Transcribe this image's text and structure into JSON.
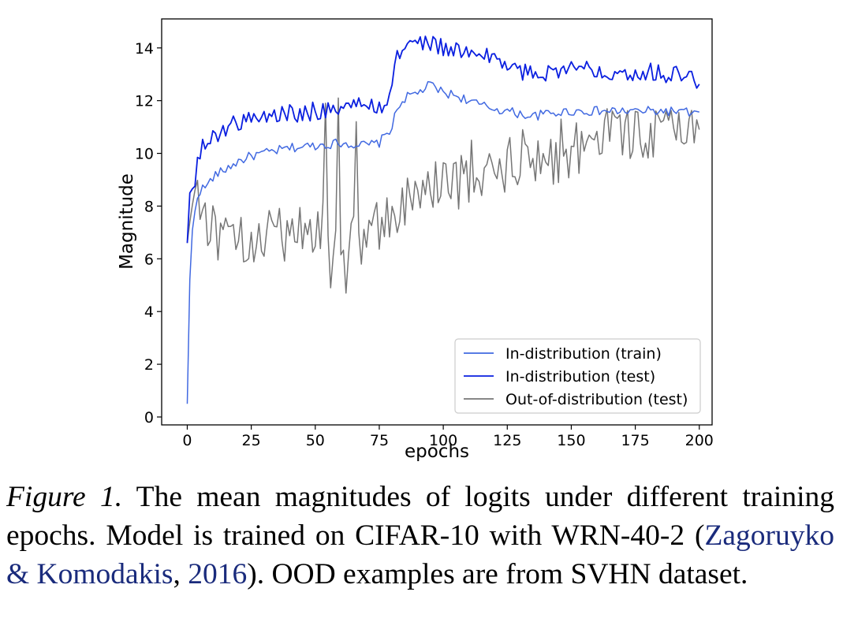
{
  "chart_data": {
    "type": "line",
    "title": "",
    "xlabel": "epochs",
    "ylabel": "Magnitude",
    "xlim": [
      -10,
      205
    ],
    "ylim": [
      -0.3,
      15.1
    ],
    "xticks": [
      0,
      25,
      50,
      75,
      100,
      125,
      150,
      175,
      200
    ],
    "yticks": [
      0,
      2,
      4,
      6,
      8,
      10,
      12,
      14
    ],
    "grid": false,
    "legend_position": "lower-right",
    "series": [
      {
        "name": "In-distribution (train)",
        "color": "#4169e1",
        "knots": [
          [
            0,
            0.5
          ],
          [
            1,
            5.2
          ],
          [
            2,
            7.0
          ],
          [
            3,
            7.8
          ],
          [
            4,
            8.4
          ],
          [
            5,
            8.6
          ],
          [
            8,
            8.8
          ],
          [
            10,
            9.1
          ],
          [
            15,
            9.4
          ],
          [
            20,
            9.7
          ],
          [
            25,
            9.9
          ],
          [
            30,
            10.0
          ],
          [
            40,
            10.2
          ],
          [
            50,
            10.3
          ],
          [
            60,
            10.4
          ],
          [
            70,
            10.3
          ],
          [
            75,
            10.4
          ],
          [
            80,
            11.0
          ],
          [
            82,
            11.7
          ],
          [
            85,
            12.1
          ],
          [
            90,
            12.3
          ],
          [
            95,
            12.6
          ],
          [
            100,
            12.3
          ],
          [
            105,
            12.2
          ],
          [
            110,
            12.0
          ],
          [
            115,
            11.8
          ],
          [
            120,
            11.7
          ],
          [
            125,
            11.6
          ],
          [
            130,
            11.5
          ],
          [
            135,
            11.4
          ],
          [
            140,
            11.5
          ],
          [
            150,
            11.6
          ],
          [
            160,
            11.6
          ],
          [
            170,
            11.6
          ],
          [
            180,
            11.6
          ],
          [
            190,
            11.6
          ],
          [
            200,
            11.5
          ]
        ],
        "noise": 0.18
      },
      {
        "name": "In-distribution (test)",
        "color": "#0a1fe0",
        "knots": [
          [
            0,
            6.6
          ],
          [
            1,
            8.5
          ],
          [
            2,
            8.6
          ],
          [
            4,
            9.6
          ],
          [
            6,
            10.2
          ],
          [
            10,
            10.6
          ],
          [
            15,
            11.0
          ],
          [
            20,
            11.2
          ],
          [
            25,
            11.3
          ],
          [
            30,
            11.4
          ],
          [
            40,
            11.5
          ],
          [
            50,
            11.6
          ],
          [
            60,
            11.8
          ],
          [
            70,
            11.8
          ],
          [
            75,
            11.8
          ],
          [
            79,
            12.0
          ],
          [
            81,
            13.6
          ],
          [
            85,
            14.0
          ],
          [
            90,
            14.2
          ],
          [
            95,
            14.2
          ],
          [
            100,
            14.0
          ],
          [
            105,
            13.9
          ],
          [
            110,
            13.8
          ],
          [
            115,
            13.6
          ],
          [
            120,
            13.7
          ],
          [
            125,
            13.3
          ],
          [
            130,
            13.1
          ],
          [
            135,
            13.0
          ],
          [
            140,
            13.1
          ],
          [
            145,
            13.2
          ],
          [
            150,
            13.2
          ],
          [
            160,
            13.2
          ],
          [
            170,
            13.1
          ],
          [
            180,
            13.1
          ],
          [
            190,
            13.0
          ],
          [
            195,
            12.9
          ],
          [
            200,
            12.8
          ]
        ],
        "noise": 0.35
      },
      {
        "name": "Out-of-distribution (test)",
        "color": "#767676",
        "knots": [
          [
            0,
            6.6
          ],
          [
            2,
            8.2
          ],
          [
            4,
            9.0
          ],
          [
            6,
            7.8
          ],
          [
            10,
            7.2
          ],
          [
            15,
            6.6
          ],
          [
            20,
            6.5
          ],
          [
            25,
            6.7
          ],
          [
            30,
            6.8
          ],
          [
            40,
            7.0
          ],
          [
            50,
            7.1
          ],
          [
            60,
            7.1
          ],
          [
            70,
            7.0
          ],
          [
            75,
            7.2
          ],
          [
            80,
            7.6
          ],
          [
            85,
            8.1
          ],
          [
            90,
            8.4
          ],
          [
            95,
            8.6
          ],
          [
            100,
            8.8
          ],
          [
            110,
            9.0
          ],
          [
            120,
            9.2
          ],
          [
            130,
            9.4
          ],
          [
            140,
            9.6
          ],
          [
            145,
            9.8
          ],
          [
            150,
            10.1
          ],
          [
            160,
            10.7
          ],
          [
            170,
            10.8
          ],
          [
            180,
            10.8
          ],
          [
            190,
            10.8
          ],
          [
            200,
            10.8
          ]
        ],
        "noise": 1.05,
        "spikes": [
          [
            54,
            11.9
          ],
          [
            56,
            4.9
          ],
          [
            59,
            12.1
          ],
          [
            62,
            4.7
          ],
          [
            66,
            11.2
          ],
          [
            68,
            5.8
          ],
          [
            111,
            10.5
          ],
          [
            126,
            10.6
          ],
          [
            131,
            10.9
          ],
          [
            146,
            11.3
          ],
          [
            167,
            11.4
          ],
          [
            196,
            11.3
          ],
          [
            198,
            10.4
          ],
          [
            200,
            10.9
          ]
        ]
      }
    ]
  },
  "caption": {
    "label": "Figure 1.",
    "text_before_cite": " The mean magnitudes of logits under different training epochs.  Model is trained on CIFAR-10 with WRN-40-2 (",
    "cite_author": "Zagoruyko & Komodakis",
    "cite_sep": ", ",
    "cite_year": "2016",
    "text_after_cite": ").  OOD examples are from SVHN dataset."
  }
}
